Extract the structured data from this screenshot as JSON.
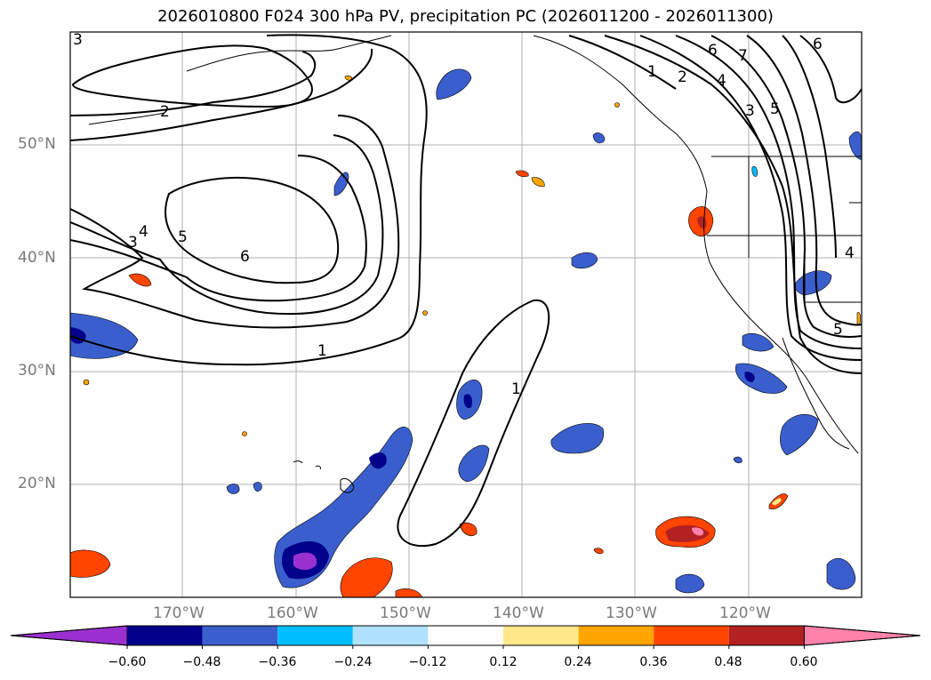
{
  "title": "2026010800 F024 300 hPa PV, precipitation PC (2026011200 - 2026011300)",
  "lat_labels": [
    "50°N",
    "40°N",
    "30°N",
    "20°N"
  ],
  "lon_labels": [
    "170°W",
    "160°W",
    "150°W",
    "140°W",
    "130°W",
    "120°W"
  ],
  "pv_contour_labels": [
    "1",
    "2",
    "3",
    "4",
    "5",
    "6",
    "7"
  ],
  "colorbar": {
    "tick_labels": [
      "−0.60",
      "−0.48",
      "−0.36",
      "−0.24",
      "−0.12",
      "0.12",
      "0.24",
      "0.36",
      "0.48",
      "0.60"
    ],
    "colors": [
      "#9b30d0",
      "#00008b",
      "#3a5fcd",
      "#00bfff",
      "#b0e2ff",
      "#ffffff",
      "#ffe88a",
      "#ffa500",
      "#ff4500",
      "#b22222",
      "#ff82ab"
    ]
  }
}
